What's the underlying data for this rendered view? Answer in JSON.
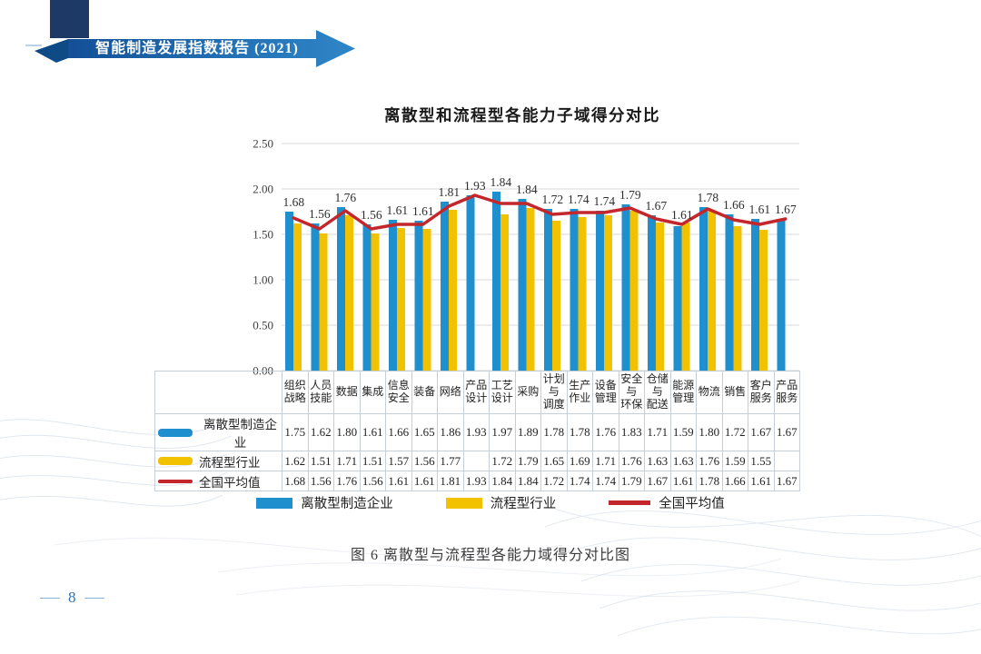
{
  "header": {
    "banner_title": "智能制造发展指数报告 (2021)"
  },
  "page_number": "8",
  "caption": "图 6 离散型与流程型各能力域得分对比图",
  "chart_data": {
    "type": "bar",
    "title": "离散型和流程型各能力子域得分对比",
    "categories": [
      "组织战略",
      "人员技能",
      "数据",
      "集成",
      "信息安全",
      "装备",
      "网络",
      "产品设计",
      "工艺设计",
      "采购",
      "计划与调度",
      "生产作业",
      "设备管理",
      "安全与环保",
      "仓储与配送",
      "能源管理",
      "物流",
      "销售",
      "客户服务",
      "产品服务"
    ],
    "categories_display": [
      "组织\n战略",
      "人员\n技能",
      "数据",
      "集成",
      "信息\n安全",
      "装备",
      "网络",
      "产品\n设计",
      "工艺\n设计",
      "采购",
      "计划\n与\n调度",
      "生产\n作业",
      "设备\n管理",
      "安全\n与\n环保",
      "仓储\n与\n配送",
      "能源\n管理",
      "物流",
      "销售",
      "客户\n服务",
      "产品\n服务"
    ],
    "series": [
      {
        "name": "离散型制造企业",
        "type": "bar",
        "color": "#1f8fce",
        "values": [
          1.75,
          1.62,
          1.8,
          1.61,
          1.66,
          1.65,
          1.86,
          1.93,
          1.97,
          1.89,
          1.78,
          1.78,
          1.76,
          1.83,
          1.71,
          1.59,
          1.8,
          1.72,
          1.67,
          1.67
        ]
      },
      {
        "name": "流程型行业",
        "type": "bar",
        "color": "#f2c100",
        "values": [
          1.62,
          1.51,
          1.71,
          1.51,
          1.57,
          1.56,
          1.77,
          null,
          1.72,
          1.79,
          1.65,
          1.69,
          1.71,
          1.76,
          1.63,
          1.63,
          1.76,
          1.59,
          1.55,
          null
        ]
      },
      {
        "name": "全国平均值",
        "type": "line",
        "color": "#c3272b",
        "values": [
          1.68,
          1.56,
          1.76,
          1.56,
          1.61,
          1.61,
          1.81,
          1.93,
          1.84,
          1.84,
          1.72,
          1.74,
          1.74,
          1.79,
          1.67,
          1.61,
          1.78,
          1.66,
          1.61,
          1.67
        ]
      }
    ],
    "data_labels_from": "全国平均值",
    "ylim": [
      0,
      2.5
    ],
    "yticks": [
      "0.00",
      "0.50",
      "1.00",
      "1.50",
      "2.00",
      "2.50"
    ],
    "grid": "horizontal",
    "legend_position": "bottom"
  }
}
